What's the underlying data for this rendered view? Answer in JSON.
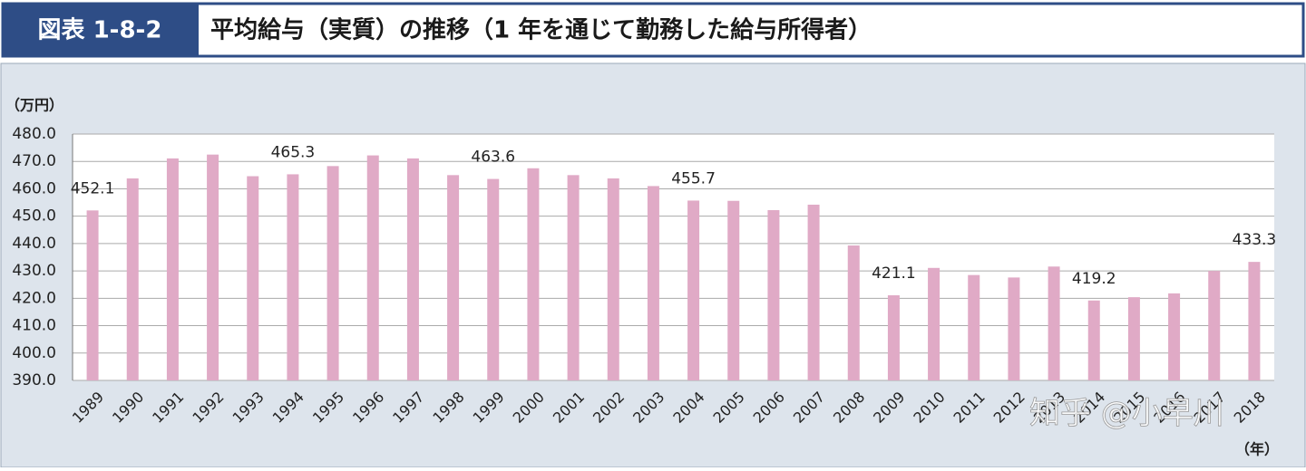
{
  "chart_data": {
    "type": "bar",
    "figure_label": "図表 1-8-2",
    "title": "平均給与（実質）の推移（1 年を通じて勤務した給与所得者）",
    "y_unit": "（万円）",
    "x_unit": "（年）",
    "watermark": "知乎 @小早川",
    "color": "#e0aac6",
    "grid": true,
    "categories": [
      "1989",
      "1990",
      "1991",
      "1992",
      "1993",
      "1994",
      "1995",
      "1996",
      "1997",
      "1998",
      "1999",
      "2000",
      "2001",
      "2002",
      "2003",
      "2004",
      "2005",
      "2006",
      "2007",
      "2008",
      "2009",
      "2010",
      "2011",
      "2012",
      "2013",
      "2014",
      "2015",
      "2016",
      "2017",
      "2018"
    ],
    "values": [
      452.1,
      463.8,
      471.1,
      472.5,
      464.6,
      465.3,
      468.3,
      472.2,
      471.1,
      465.0,
      463.6,
      467.5,
      465.0,
      463.8,
      461.0,
      455.7,
      455.6,
      452.2,
      454.2,
      439.3,
      421.1,
      431.1,
      428.5,
      427.6,
      431.6,
      419.2,
      420.4,
      421.8,
      430.0,
      433.3
    ],
    "value_labels": [
      "452.1",
      null,
      null,
      null,
      null,
      "465.3",
      null,
      null,
      null,
      null,
      "463.6",
      null,
      null,
      null,
      null,
      "455.7",
      null,
      null,
      null,
      null,
      "421.1",
      null,
      null,
      null,
      null,
      "419.2",
      null,
      null,
      null,
      "433.3"
    ],
    "ylim": [
      390,
      480
    ],
    "yticks": [
      {
        "value": 390,
        "label": "390.0"
      },
      {
        "value": 400,
        "label": "400.0"
      },
      {
        "value": 410,
        "label": "410.0"
      },
      {
        "value": 420,
        "label": "420.0"
      },
      {
        "value": 430,
        "label": "430.0"
      },
      {
        "value": 440,
        "label": "440.0"
      },
      {
        "value": 450,
        "label": "450.0"
      },
      {
        "value": 460,
        "label": "460.0"
      },
      {
        "value": 470,
        "label": "470.0"
      },
      {
        "value": 480,
        "label": "480.0"
      }
    ]
  }
}
